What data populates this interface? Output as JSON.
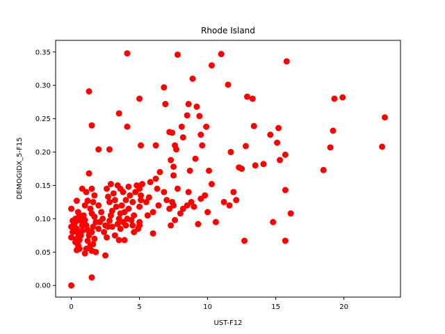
{
  "chart_data": {
    "type": "scatter",
    "title": "Rhode Island",
    "xlabel": "UST-F12",
    "ylabel": "DEMOGIDX_5-F15",
    "xlim": [
      -1.15,
      24.15
    ],
    "ylim": [
      -0.0175,
      0.3675
    ],
    "xticks": [
      0,
      5,
      10,
      15,
      20
    ],
    "yticks": [
      0.0,
      0.05,
      0.1,
      0.15,
      0.2,
      0.25,
      0.3,
      0.35
    ],
    "xtick_labels": [
      "0",
      "5",
      "10",
      "15",
      "20"
    ],
    "ytick_labels": [
      "0.00",
      "0.05",
      "0.10",
      "0.15",
      "0.20",
      "0.25",
      "0.30",
      "0.35"
    ],
    "grid": false,
    "marker_color": "#ff0000",
    "points": [
      [
        0.0,
        0.0
      ],
      [
        0.0,
        0.115
      ],
      [
        0.1,
        0.097
      ],
      [
        0.0,
        0.088
      ],
      [
        0.1,
        0.08
      ],
      [
        0.0,
        0.072
      ],
      [
        0.2,
        0.09
      ],
      [
        0.3,
        0.1
      ],
      [
        0.3,
        0.095
      ],
      [
        0.4,
        0.085
      ],
      [
        0.5,
        0.078
      ],
      [
        0.4,
        0.07
      ],
      [
        0.3,
        0.065
      ],
      [
        0.5,
        0.06
      ],
      [
        0.4,
        0.053
      ],
      [
        0.6,
        0.055
      ],
      [
        0.6,
        0.068
      ],
      [
        0.7,
        0.075
      ],
      [
        0.8,
        0.082
      ],
      [
        0.8,
        0.09
      ],
      [
        0.7,
        0.097
      ],
      [
        0.6,
        0.105
      ],
      [
        0.5,
        0.11
      ],
      [
        0.4,
        0.127
      ],
      [
        0.8,
        0.145
      ],
      [
        1.1,
        0.14
      ],
      [
        1.2,
        0.127
      ],
      [
        1.0,
        0.12
      ],
      [
        0.9,
        0.105
      ],
      [
        1.0,
        0.098
      ],
      [
        1.1,
        0.09
      ],
      [
        1.2,
        0.083
      ],
      [
        1.3,
        0.075
      ],
      [
        1.2,
        0.067
      ],
      [
        1.4,
        0.06
      ],
      [
        1.1,
        0.055
      ],
      [
        1.0,
        0.048
      ],
      [
        1.5,
        0.052
      ],
      [
        1.6,
        0.062
      ],
      [
        1.7,
        0.07
      ],
      [
        1.5,
        0.08
      ],
      [
        1.6,
        0.088
      ],
      [
        1.8,
        0.095
      ],
      [
        1.7,
        0.103
      ],
      [
        1.5,
        0.108
      ],
      [
        1.4,
        0.115
      ],
      [
        1.6,
        0.125
      ],
      [
        1.7,
        0.135
      ],
      [
        1.5,
        0.145
      ],
      [
        1.3,
        0.168
      ],
      [
        1.3,
        0.291
      ],
      [
        1.5,
        0.24
      ],
      [
        1.5,
        0.012
      ],
      [
        1.8,
        0.05
      ],
      [
        2.0,
        0.085
      ],
      [
        2.1,
        0.095
      ],
      [
        2.2,
        0.11
      ],
      [
        2.0,
        0.12
      ],
      [
        2.3,
        0.1
      ],
      [
        2.5,
        0.09
      ],
      [
        2.4,
        0.08
      ],
      [
        2.6,
        0.072
      ],
      [
        2.5,
        0.045
      ],
      [
        2.7,
        0.088
      ],
      [
        2.8,
        0.097
      ],
      [
        2.9,
        0.105
      ],
      [
        3.0,
        0.112
      ],
      [
        2.8,
        0.125
      ],
      [
        2.7,
        0.133
      ],
      [
        2.6,
        0.145
      ],
      [
        2.9,
        0.152
      ],
      [
        3.1,
        0.138
      ],
      [
        3.2,
        0.128
      ],
      [
        3.3,
        0.118
      ],
      [
        3.0,
        0.088
      ],
      [
        3.2,
        0.075
      ],
      [
        3.4,
        0.092
      ],
      [
        3.5,
        0.1
      ],
      [
        3.6,
        0.108
      ],
      [
        3.4,
        0.15
      ],
      [
        3.6,
        0.145
      ],
      [
        3.8,
        0.14
      ],
      [
        3.7,
        0.12
      ],
      [
        3.9,
        0.11
      ],
      [
        3.8,
        0.095
      ],
      [
        3.6,
        0.085
      ],
      [
        3.5,
        0.068
      ],
      [
        3.9,
        0.068
      ],
      [
        4.0,
        0.09
      ],
      [
        4.1,
        0.1
      ],
      [
        4.2,
        0.115
      ],
      [
        4.0,
        0.128
      ],
      [
        4.3,
        0.135
      ],
      [
        4.2,
        0.148
      ],
      [
        4.4,
        0.098
      ],
      [
        4.5,
        0.09
      ],
      [
        4.6,
        0.105
      ],
      [
        4.5,
        0.125
      ],
      [
        4.7,
        0.14
      ],
      [
        4.8,
        0.15
      ],
      [
        4.6,
        0.08
      ],
      [
        4.9,
        0.085
      ],
      [
        5.0,
        0.095
      ],
      [
        5.0,
        0.118
      ],
      [
        5.1,
        0.128
      ],
      [
        5.0,
        0.145
      ],
      [
        5.2,
        0.152
      ],
      [
        5.1,
        0.135
      ],
      [
        5.5,
        0.125
      ],
      [
        5.6,
        0.105
      ],
      [
        5.7,
        0.132
      ],
      [
        5.8,
        0.155
      ],
      [
        6.0,
        0.11
      ],
      [
        6.2,
        0.16
      ],
      [
        6.3,
        0.145
      ],
      [
        6.4,
        0.12
      ],
      [
        6.5,
        0.17
      ],
      [
        6.8,
        0.14
      ],
      [
        7.0,
        0.128
      ],
      [
        7.2,
        0.115
      ],
      [
        7.3,
        0.09
      ],
      [
        7.4,
        0.125
      ],
      [
        7.5,
        0.12
      ],
      [
        7.6,
        0.098
      ],
      [
        7.8,
        0.145
      ],
      [
        8.0,
        0.108
      ],
      [
        8.2,
        0.115
      ],
      [
        8.5,
        0.12
      ],
      [
        8.6,
        0.14
      ],
      [
        8.8,
        0.125
      ],
      [
        9.0,
        0.118
      ],
      [
        9.3,
        0.092
      ],
      [
        9.5,
        0.13
      ],
      [
        9.8,
        0.135
      ],
      [
        10.0,
        0.11
      ],
      [
        10.3,
        0.152
      ],
      [
        10.6,
        0.095
      ],
      [
        11.2,
        0.125
      ],
      [
        11.6,
        0.12
      ],
      [
        11.9,
        0.14
      ],
      [
        12.1,
        0.128
      ],
      [
        12.5,
        0.175
      ],
      [
        12.7,
        0.067
      ],
      [
        13.5,
        0.18
      ],
      [
        14.1,
        0.182
      ],
      [
        14.8,
        0.095
      ],
      [
        15.3,
        0.188
      ],
      [
        15.7,
        0.143
      ],
      [
        15.7,
        0.067
      ],
      [
        16.1,
        0.108
      ],
      [
        5.0,
        0.28
      ],
      [
        5.1,
        0.21
      ],
      [
        5.0,
        0.09
      ],
      [
        6.0,
        0.078
      ],
      [
        6.2,
        0.21
      ],
      [
        6.8,
        0.297
      ],
      [
        6.9,
        0.272
      ],
      [
        7.2,
        0.23
      ],
      [
        7.3,
        0.188
      ],
      [
        7.4,
        0.229
      ],
      [
        7.5,
        0.178
      ],
      [
        7.5,
        0.165
      ],
      [
        7.6,
        0.21
      ],
      [
        7.7,
        0.204
      ],
      [
        7.8,
        0.346
      ],
      [
        8.1,
        0.238
      ],
      [
        8.2,
        0.222
      ],
      [
        8.5,
        0.255
      ],
      [
        8.6,
        0.272
      ],
      [
        8.7,
        0.172
      ],
      [
        8.9,
        0.31
      ],
      [
        9.1,
        0.19
      ],
      [
        9.2,
        0.268
      ],
      [
        9.4,
        0.254
      ],
      [
        9.5,
        0.226
      ],
      [
        9.6,
        0.21
      ],
      [
        9.9,
        0.238
      ],
      [
        10.1,
        0.172
      ],
      [
        10.3,
        0.33
      ],
      [
        11.0,
        0.347
      ],
      [
        11.5,
        0.301
      ],
      [
        11.7,
        0.2
      ],
      [
        12.3,
        0.177
      ],
      [
        12.8,
        0.209
      ],
      [
        12.9,
        0.283
      ],
      [
        13.3,
        0.28
      ],
      [
        13.4,
        0.239
      ],
      [
        14.6,
        0.226
      ],
      [
        15.1,
        0.214
      ],
      [
        15.2,
        0.236
      ],
      [
        15.7,
        0.196
      ],
      [
        15.8,
        0.336
      ],
      [
        18.5,
        0.173
      ],
      [
        19.0,
        0.207
      ],
      [
        19.2,
        0.232
      ],
      [
        19.3,
        0.28
      ],
      [
        19.9,
        0.282
      ],
      [
        22.8,
        0.208
      ],
      [
        23.0,
        0.252
      ],
      [
        3.5,
        0.258
      ],
      [
        4.1,
        0.348
      ],
      [
        4.1,
        0.238
      ],
      [
        2.0,
        0.204
      ],
      [
        2.8,
        0.204
      ]
    ]
  }
}
